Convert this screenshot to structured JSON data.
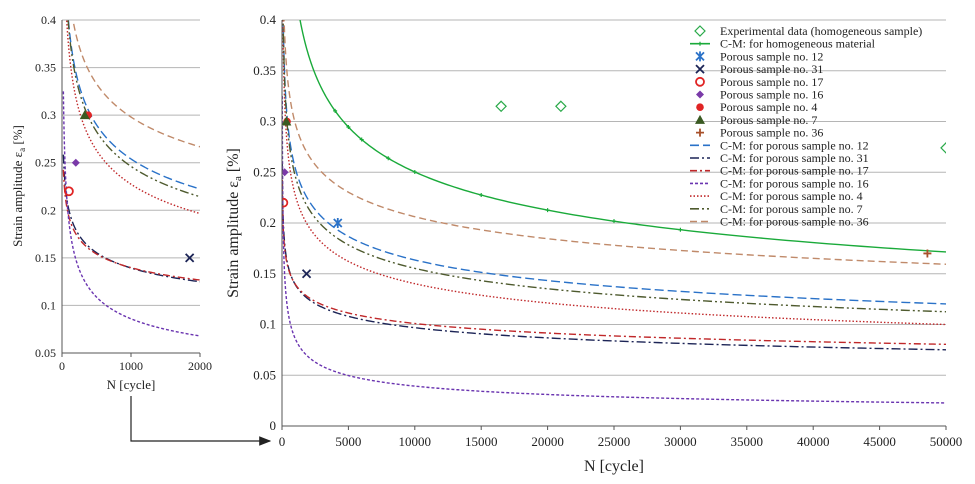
{
  "chart_data": [
    {
      "type": "line",
      "name": "inset",
      "title": "",
      "xlabel": "N [cycle]",
      "ylabel": "Strain amplitude εa [%]",
      "xlim": [
        0,
        2000
      ],
      "ylim": [
        0.05,
        0.4
      ],
      "x_ticks": [
        0,
        1000,
        2000
      ],
      "x_tick_labels": [
        "0",
        "1000",
        "2000"
      ],
      "y_ticks": [
        0.05,
        0.1,
        0.15,
        0.2,
        0.25,
        0.3,
        0.35,
        0.4
      ],
      "y_tick_labels": [
        "0.05",
        "0.1",
        "0.15",
        "0.2",
        "0.25",
        "0.3",
        "0.35",
        "0.4"
      ],
      "grid": "horizontal"
    },
    {
      "type": "line",
      "name": "main",
      "title": "",
      "xlabel": "N [cycle]",
      "ylabel": "Strain amplitude εa [%]",
      "xlim": [
        0,
        50000
      ],
      "ylim": [
        0,
        0.4
      ],
      "x_ticks": [
        0,
        5000,
        10000,
        15000,
        20000,
        25000,
        30000,
        35000,
        40000,
        45000,
        50000
      ],
      "x_tick_labels": [
        "0",
        "5000",
        "10000",
        "15000",
        "20000",
        "25000",
        "30000",
        "35000",
        "40000",
        "45000",
        "50000"
      ],
      "y_ticks": [
        0,
        0.05,
        0.1,
        0.15,
        0.2,
        0.25,
        0.3,
        0.35,
        0.4
      ],
      "y_tick_labels": [
        "0",
        "0.05",
        "0.1",
        "0.15",
        "0.2",
        "0.25",
        "0.3",
        "0.35",
        "0.4"
      ],
      "grid": "horizontal",
      "legend_position": "top-right"
    }
  ],
  "series": [
    {
      "id": "chom",
      "name": "C-M: for homogeneous material",
      "kind": "line",
      "color": "#1aaa3a",
      "dash": "",
      "A": 2.18,
      "b": 0.235,
      "markers": true,
      "inset": false
    },
    {
      "id": "c12",
      "name": "C-M: for porous sample no. 12",
      "kind": "line",
      "color": "#2a72c8",
      "dash": "9,4",
      "A": 0.95,
      "b": 0.191,
      "inset": true
    },
    {
      "id": "c31",
      "name": "C-M: for porous sample no. 31",
      "kind": "line",
      "color": "#1c2456",
      "dash": "9,3,2,3",
      "A": 0.415,
      "b": 0.158,
      "inset": true
    },
    {
      "id": "c17",
      "name": "C-M: for porous sample no. 17",
      "kind": "line",
      "color": "#c0282a",
      "dash": "7,3,2,3",
      "A": 0.37,
      "b": 0.141,
      "inset": true
    },
    {
      "id": "c16",
      "name": "C-M: for porous sample no. 16",
      "kind": "line",
      "color": "#6a34b0",
      "dash": "3,2",
      "A": 0.9,
      "b": 0.34,
      "inset": true
    },
    {
      "id": "c4",
      "name": "C-M: for porous sample no. 4",
      "kind": "line",
      "color": "#c0282a",
      "dash": "1.5,2",
      "A": 0.97,
      "b": 0.21,
      "inset": true
    },
    {
      "id": "c7",
      "name": "C-M: for porous sample no. 7",
      "kind": "line",
      "color": "#4e5a2e",
      "dash": "9,3,2,3,2,3",
      "A": 0.98,
      "b": 0.2,
      "inset": true
    },
    {
      "id": "c36",
      "name": "C-M: for porous sample no. 36",
      "kind": "line",
      "color": "#c08a6a",
      "dash": "7,4",
      "A": 0.9,
      "b": 0.16,
      "inset": true
    }
  ],
  "points": [
    {
      "id": "exp",
      "name": "Experimental data (homogeneous sample)",
      "marker": "diamond-open",
      "color": "#2aaa4a",
      "data": [
        [
          16500,
          0.315
        ],
        [
          21000,
          0.315
        ],
        [
          50000,
          0.274
        ]
      ]
    },
    {
      "id": "p12",
      "name": "Porous sample no. 12",
      "marker": "star",
      "color": "#2a72c8",
      "data": [
        [
          4200,
          0.2
        ]
      ]
    },
    {
      "id": "p31",
      "name": "Porous sample no. 31",
      "marker": "x",
      "color": "#1c2456",
      "data": [
        [
          1850,
          0.15
        ]
      ]
    },
    {
      "id": "p17",
      "name": "Porous sample no. 17",
      "marker": "circle-open",
      "color": "#e02424",
      "data": [
        [
          100,
          0.22
        ]
      ]
    },
    {
      "id": "p16",
      "name": "Porous sample no. 16",
      "marker": "diamond",
      "color": "#7a3aa8",
      "data": [
        [
          200,
          0.25
        ]
      ]
    },
    {
      "id": "p4",
      "name": "Porous sample no. 4",
      "marker": "circle",
      "color": "#e02424",
      "data": [
        [
          380,
          0.3
        ]
      ]
    },
    {
      "id": "p7",
      "name": "Porous sample no. 7",
      "marker": "triangle",
      "color": "#3a5a22",
      "data": [
        [
          330,
          0.3
        ]
      ]
    },
    {
      "id": "p36",
      "name": "Porous sample no. 36",
      "marker": "plus",
      "color": "#a8502a",
      "data": [
        [
          48600,
          0.17
        ]
      ]
    }
  ],
  "legend_order": [
    "exp",
    "chom",
    "p12",
    "p31",
    "p17",
    "p16",
    "p4",
    "p7",
    "p36",
    "c12",
    "c31",
    "c17",
    "c16",
    "c4",
    "c7",
    "c36"
  ],
  "colors": {
    "grid": "#b5b5b5",
    "axis": "#555555",
    "arrow": "#222222"
  }
}
